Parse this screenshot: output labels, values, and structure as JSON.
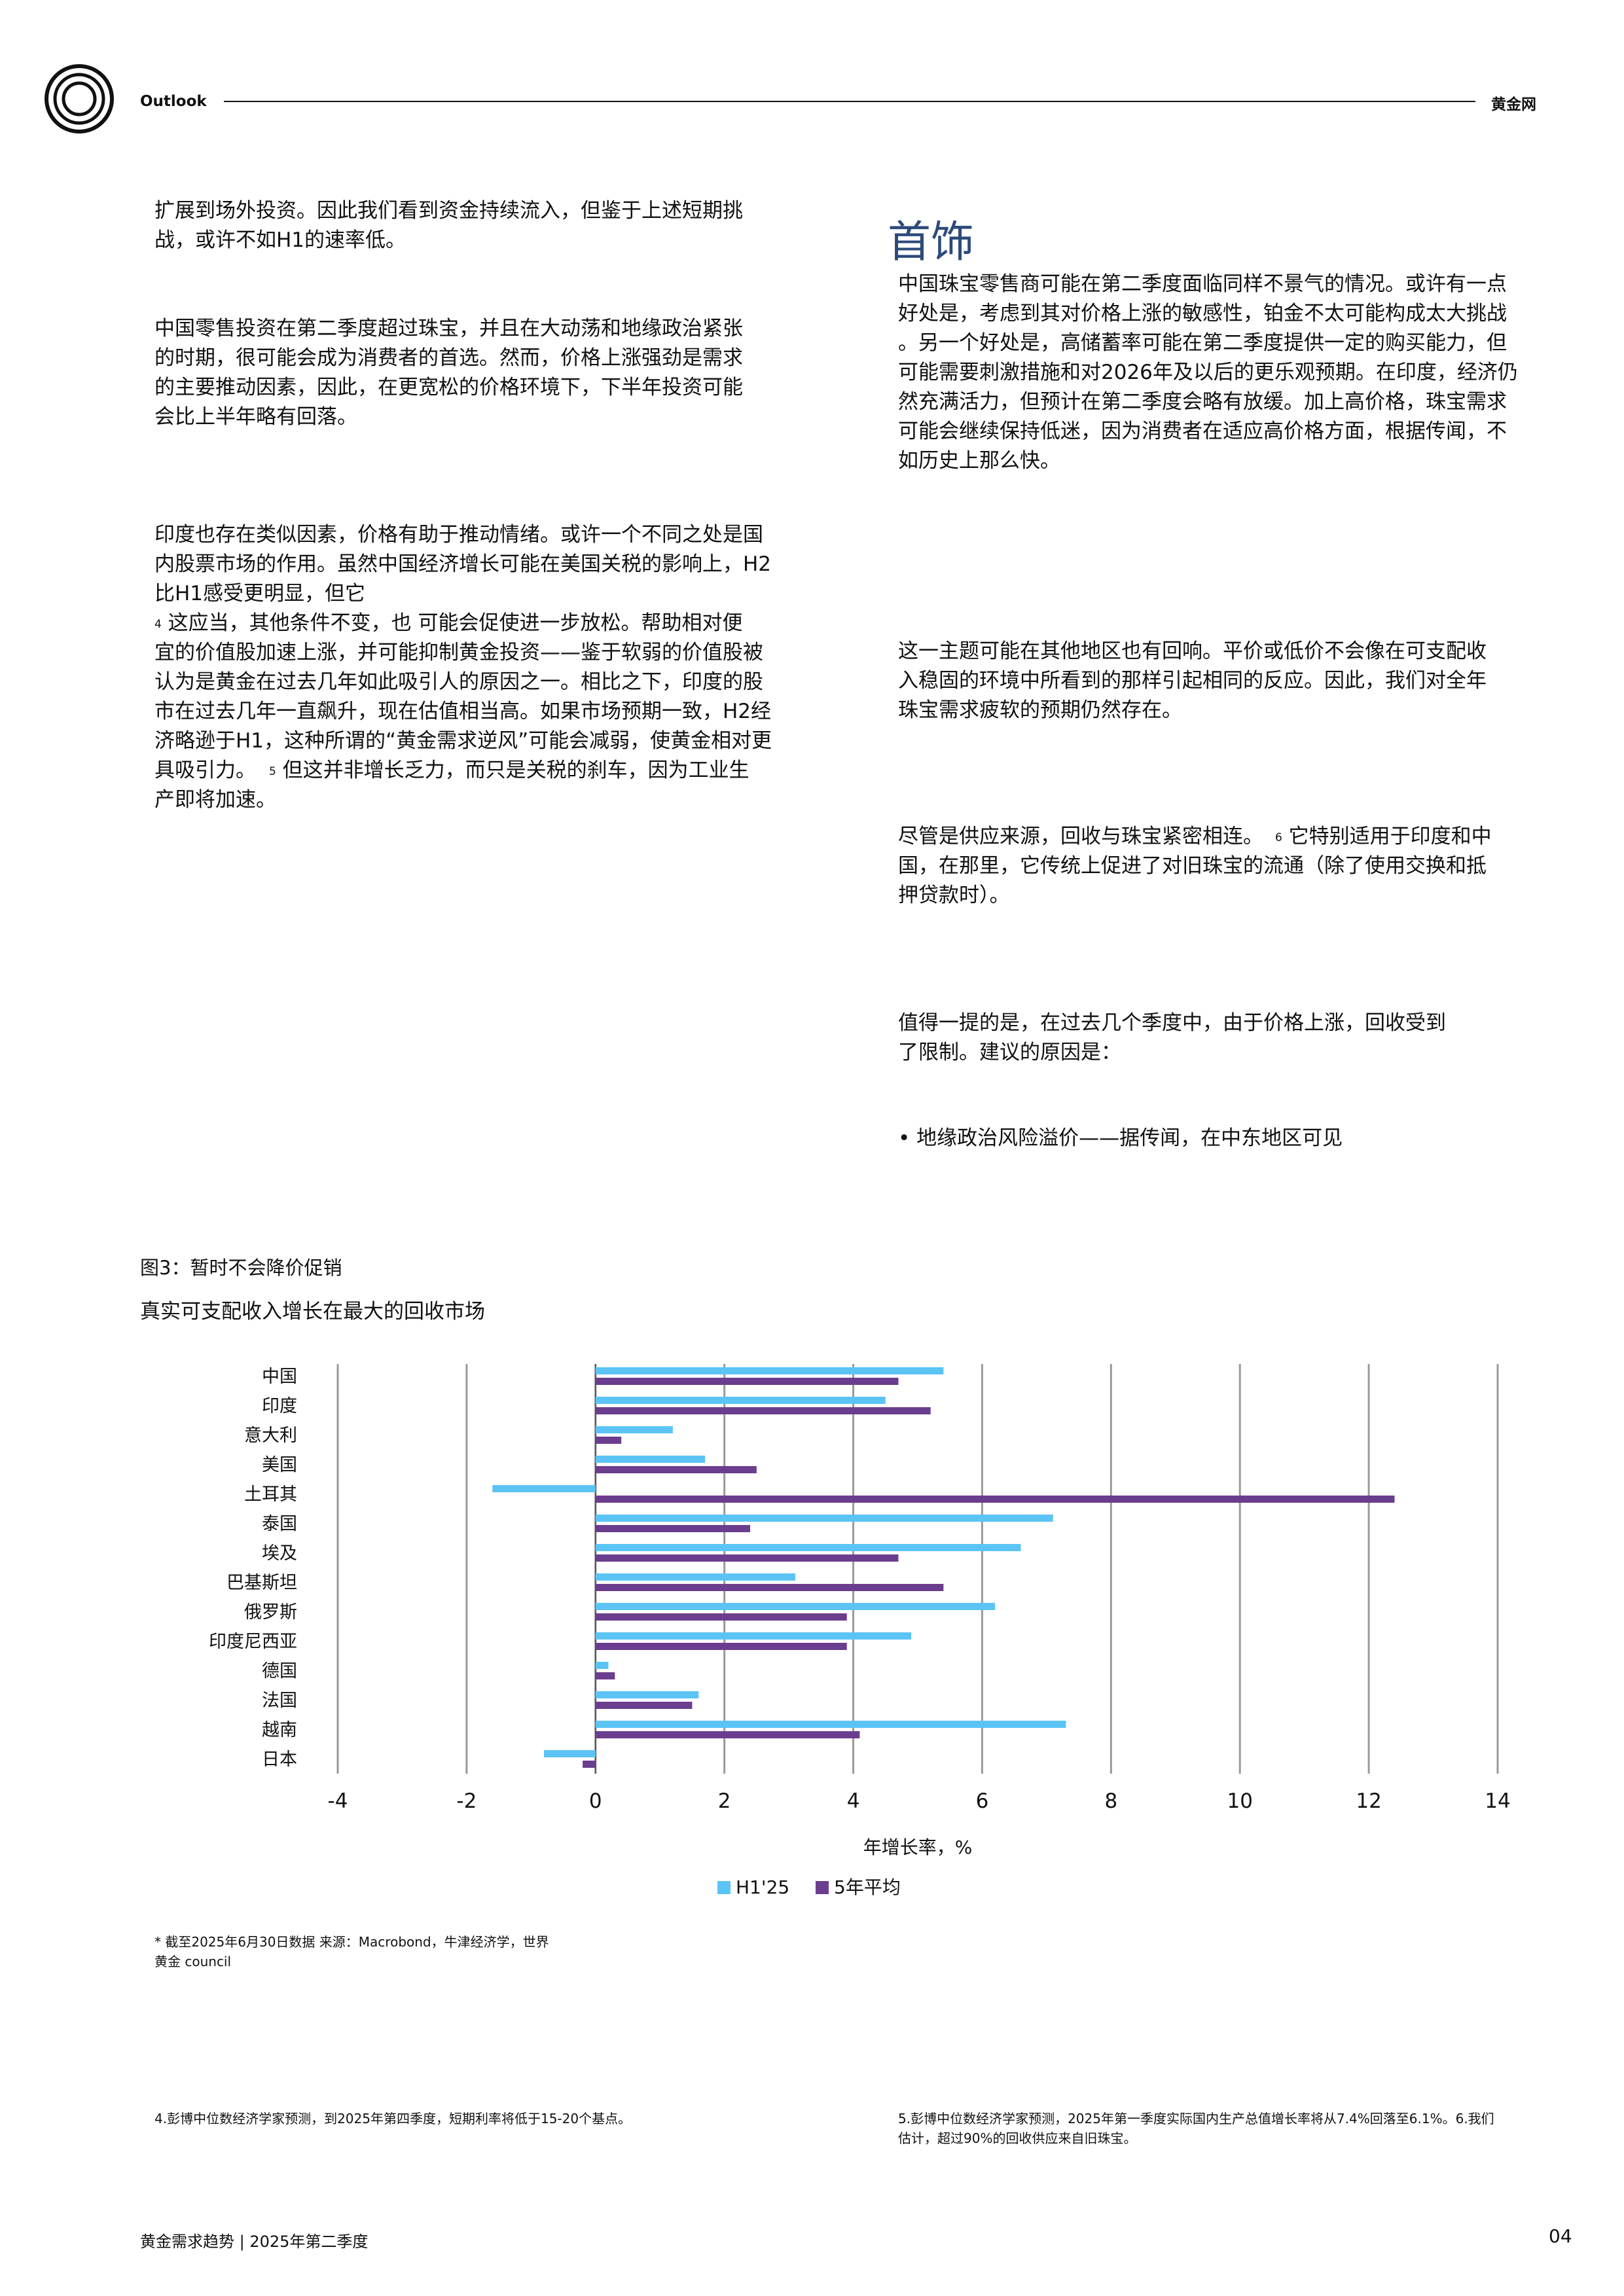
{
  "header": {
    "section": "Outlook",
    "brand": "黄金网",
    "logo_icon": "concentric-circles-logo"
  },
  "left_column": {
    "p1": "扩展到场外投资。因此我们看到资金持续流入，但鉴于上述短期挑\n战，或许不如H1的速率低。",
    "p2": "中国零售投资在第二季度超过珠宝，并且在大动荡和地缘政治紧张\n的时期，很可能会成为消费者的首选。然而，价格上涨强劲是需求\n的主要推动因素，因此，在更宽松的价格环境下，下半年投资可能\n会比上半年略有回落。",
    "p3a": "印度也存在类似因素，价格有助于推动情绪。或许一个不同之处是国\n内股票市场的作用。虽然中国经济增长可能在美国关税的影响上，H2\n比H1感受更明显，但它",
    "p3_sup1": "4",
    "p3b": " 这应当，其他条件不变，也  可能会促使进一步放松。帮助相对便\n宜的价值股加速上涨，并可能抑制黄金投资——鉴于软弱的价值股被\n认为是黄金在过去几年如此吸引人的原因之一。相比之下，印度的股\n市在过去几年一直飙升，现在估值相当高。如果市场预期一致，H2经\n济略逊于H1，这种所谓的“黄金需求逆风”可能会减弱，使黄金相对更\n具吸引力。",
    "p3_sup2": "5",
    "p3c": "  但这并非增长乏力，而只是关税的刹车，因为工业生\n产即将加速。"
  },
  "right_column": {
    "title": "首饰",
    "p1": "中国珠宝零售商可能在第二季度面临同样不景气的情况。或许有一点\n好处是，考虑到其对价格上涨的敏感性，铂金不太可能构成太大挑战\n。另一个好处是，高储蓄率可能在第二季度提供一定的购买能力，但\n可能需要刺激措施和对2026年及以后的更乐观预期。在印度，经济仍\n然充满活力，但预计在第二季度会略有放缓。加上高价格，珠宝需求\n可能会继续保持低迷，因为消费者在适应高价格方面，根据传闻，不\n如历史上那么快。",
    "p2": "这一主题可能在其他地区也有回响。平价或低价不会像在可支配收\n入稳固的环境中所看到的那样引起相同的反应。因此，我们对全年\n珠宝需求疲软的预期仍然存在。",
    "p3a": "尽管是供应来源，回收与珠宝紧密相连。",
    "p3_sup": "6",
    "p3b": " 它特别适用于印度和中\n国，在那里，它传统上促进了对旧珠宝的流通（除了使用交换和抵\n押贷款时）。",
    "p4": "值得一提的是，在过去几个季度中，由于价格上涨，回收受到\n了限制。建议的原因是：",
    "bullet": "• 地缘政治风险溢价——据传闻，在中东地区可见"
  },
  "figure": {
    "title": "图3：暂时不会降价促销",
    "subtitle": "真实可支配收入增长在最大的回收市场",
    "note": "* 截至2025年6月30日数据 来源：Macrobond，牛津经济学，世界\n黄金 council"
  },
  "chart_data": {
    "type": "bar",
    "orientation": "horizontal",
    "categories": [
      "中国",
      "印度",
      "意大利",
      "美国",
      "土耳其",
      "泰国",
      "埃及",
      "巴基斯坦",
      "俄罗斯",
      "印度尼西亚",
      "德国",
      "法国",
      "越南",
      "日本"
    ],
    "series": [
      {
        "name": "H1'25",
        "color": "#5bc4f5",
        "values": [
          5.4,
          4.5,
          1.2,
          1.7,
          -1.6,
          7.1,
          6.6,
          3.1,
          6.2,
          4.9,
          0.2,
          1.6,
          7.3,
          -0.8
        ]
      },
      {
        "name": "5年平均",
        "color": "#6b3d8e",
        "values": [
          4.7,
          5.2,
          0.4,
          2.5,
          12.4,
          2.4,
          4.7,
          5.4,
          3.9,
          3.9,
          0.3,
          1.5,
          4.1,
          -0.2
        ]
      }
    ],
    "x_ticks": [
      "-4",
      "-2",
      "0",
      "2",
      "4",
      "6",
      "8",
      "10",
      "12",
      "14"
    ],
    "xlim": [
      -4,
      14
    ],
    "xlabel": "年增长率，%",
    "grid": "vertical",
    "legend": "bottom-center"
  },
  "footnotes": {
    "left": "4.彭博中位数经济学家预测，到2025年第四季度，短期利率将低于15-20个基点。",
    "right": "5.彭博中位数经济学家预测，2025年第一季度实际国内生产总值增长率将从7.4%回落至6.1%。6.我们\n估计，超过90%的回收供应来自旧珠宝。"
  },
  "footer": {
    "left": "黄金需求趋势 | 2025年第二季度",
    "page": "04"
  }
}
